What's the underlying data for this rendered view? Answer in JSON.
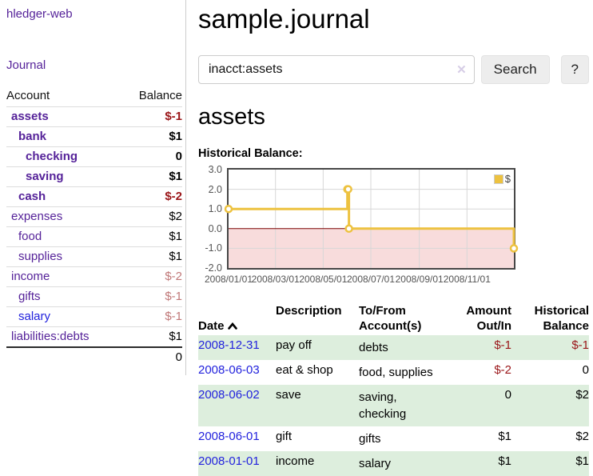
{
  "app": {
    "brand": "hledger-web",
    "nav": {
      "journal": "Journal"
    }
  },
  "sidebar": {
    "columns": {
      "account": "Account",
      "balance": "Balance"
    },
    "accounts": [
      {
        "name": "assets",
        "balance": "$-1",
        "indent": 0,
        "bold": true
      },
      {
        "name": "bank",
        "balance": "$1",
        "indent": 1,
        "bold": true
      },
      {
        "name": "checking",
        "balance": "0",
        "indent": 2,
        "bold": true
      },
      {
        "name": "saving",
        "balance": "$1",
        "indent": 2,
        "bold": true
      },
      {
        "name": "cash",
        "balance": "$-2",
        "indent": 1,
        "bold": true
      },
      {
        "name": "expenses",
        "balance": "$2",
        "indent": 0,
        "bold": false
      },
      {
        "name": "food",
        "balance": "$1",
        "indent": 1,
        "bold": false
      },
      {
        "name": "supplies",
        "balance": "$1",
        "indent": 1,
        "bold": false
      },
      {
        "name": "income",
        "balance": "$-2",
        "indent": 0,
        "bold": false
      },
      {
        "name": "gifts",
        "balance": "$-1",
        "indent": 1,
        "bold": false
      },
      {
        "name": "salary",
        "balance": "$-1",
        "indent": 1,
        "bold": false,
        "blue": true
      },
      {
        "name": "liabilities:debts",
        "balance": "$1",
        "indent": 0,
        "bold": false,
        "separator_after": true
      }
    ],
    "total": "0"
  },
  "header": {
    "title": "sample.journal"
  },
  "search": {
    "query": "inacct:assets",
    "clear_icon": "✕",
    "search_button": "Search",
    "help_button": "?"
  },
  "account_view": {
    "heading": "assets",
    "chart_title": "Historical Balance:"
  },
  "chart_data": {
    "type": "line",
    "step": true,
    "series": [
      {
        "name": "$",
        "color": "#EDC240",
        "points": [
          [
            "2008-01-01",
            1
          ],
          [
            "2008-06-01",
            2
          ],
          [
            "2008-06-02",
            2
          ],
          [
            "2008-06-03",
            0
          ],
          [
            "2008-12-31",
            -1
          ]
        ]
      }
    ],
    "x_ticks": [
      "2008/01/01",
      "2008/03/01",
      "2008/05/01",
      "2008/07/01",
      "2008/09/01",
      "2008/11/01"
    ],
    "y_ticks": [
      "3.0",
      "2.0",
      "1.0",
      "0.0",
      "-1.0",
      "-2.0"
    ],
    "xlim": [
      "2008-01-01",
      "2008-12-31"
    ],
    "ylim": [
      -2,
      3
    ],
    "grid": true,
    "legend_position": "top-right",
    "colors": {
      "negative_region": "#f8dcdc",
      "zero_line": "#7a0000",
      "grid": "#d7d7d7",
      "border": "#474747",
      "tick_text": "#545454"
    }
  },
  "register": {
    "sort": {
      "column": "Date",
      "direction": "ascending"
    },
    "headers": {
      "date": "Date",
      "description": "Description",
      "tofrom": "To/From\nAccount(s)",
      "amount": "Amount\nOut/In",
      "historical": "Historical\nBalance"
    },
    "rows": [
      {
        "date": "2008-12-31",
        "description": "pay off",
        "accounts": "debts",
        "amount": "$-1",
        "balance": "$-1"
      },
      {
        "date": "2008-06-03",
        "description": "eat & shop",
        "accounts": "food, supplies",
        "amount": "$-2",
        "balance": "0"
      },
      {
        "date": "2008-06-02",
        "description": "save",
        "accounts": "saving,\nchecking",
        "amount": "0",
        "balance": "$2"
      },
      {
        "date": "2008-06-01",
        "description": "gift",
        "accounts": "gifts",
        "amount": "$1",
        "balance": "$2"
      },
      {
        "date": "2008-01-01",
        "description": "income",
        "accounts": "salary",
        "amount": "$1",
        "balance": "$1"
      }
    ]
  }
}
